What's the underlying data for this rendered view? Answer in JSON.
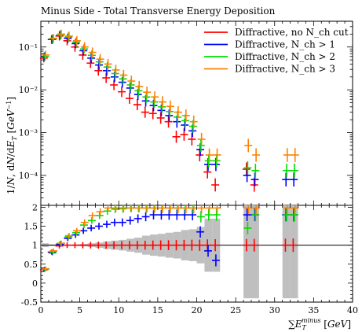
{
  "chart_data": {
    "type": "scatter",
    "title": "Minus Side - Total Transverse Energy Deposition",
    "xlabel": "∑E_T^minus [GeV]",
    "ylabel": "1/N dN/dE_T [GeV^-1]",
    "xlim": [
      0,
      40
    ],
    "top_panel": {
      "ylim_log": [
        2e-05,
        0.4
      ],
      "y_ticks": [
        {
          "value": 0.1,
          "label": "10⁻¹"
        },
        {
          "value": 0.01,
          "label": "10⁻²"
        },
        {
          "value": 0.001,
          "label": "10⁻³"
        },
        {
          "value": 0.0001,
          "label": "10⁻⁴"
        }
      ]
    },
    "ratio_panel": {
      "ylim": [
        -0.5,
        2.05
      ],
      "y_ticks": [
        "-0.5",
        "0",
        "0.5",
        "1",
        "1.5",
        "2"
      ]
    },
    "x_ticks": [
      "0",
      "5",
      "10",
      "15",
      "20",
      "25",
      "30",
      "35",
      "40"
    ],
    "legend_position": "top-right",
    "legend": [
      {
        "label": "Diffractive, no N_ch cut",
        "color": "#ff0000"
      },
      {
        "label": "Diffractive, N_ch > 1",
        "color": "#0000ff"
      },
      {
        "label": "Diffractive, N_ch > 2",
        "color": "#00dd00"
      },
      {
        "label": "Diffractive, N_ch > 3",
        "color": "#ff8000"
      }
    ],
    "bin_width": 1,
    "x": [
      0.5,
      1.5,
      2.5,
      3.5,
      4.5,
      5.5,
      6.5,
      7.5,
      8.5,
      9.5,
      10.5,
      11.5,
      12.5,
      13.5,
      14.5,
      15.5,
      16.5,
      17.5,
      18.5,
      19.5,
      20.5,
      21.5,
      22.5,
      26.5,
      27.5,
      31.5,
      32.5
    ],
    "series": [
      {
        "name": "Diffractive, no N_ch cut",
        "color": "#ff0000",
        "values": [
          0.055,
          0.15,
          0.18,
          0.14,
          0.1,
          0.065,
          0.042,
          0.028,
          0.019,
          0.013,
          0.009,
          0.0063,
          0.0045,
          0.003,
          0.0028,
          0.0022,
          0.0018,
          0.0008,
          0.0009,
          0.0007,
          0.0003,
          0.00012,
          6e-05,
          0.00014,
          6e-05,
          0.0,
          0.0
        ],
        "ratio": [
          0.35,
          0.82,
          0.98,
          1.0,
          1.0,
          1.0,
          1.0,
          1.0,
          1.0,
          1.0,
          1.0,
          1.0,
          1.0,
          1.0,
          1.0,
          1.0,
          1.0,
          1.0,
          1.0,
          1.0,
          1.0,
          1.0,
          1.0,
          1.0,
          1.0,
          1.0,
          1.0
        ]
      },
      {
        "name": "Diffractive, N_ch > 1",
        "color": "#0000ff",
        "values": [
          0.06,
          0.15,
          0.19,
          0.16,
          0.12,
          0.082,
          0.055,
          0.038,
          0.028,
          0.02,
          0.015,
          0.011,
          0.0078,
          0.0055,
          0.0043,
          0.0033,
          0.0025,
          0.0018,
          0.0015,
          0.0011,
          0.0004,
          0.00018,
          0.00018,
          0.0001,
          8e-05,
          8e-05,
          8e-05
        ],
        "ratio": [
          0.37,
          0.8,
          1.03,
          1.18,
          1.27,
          1.38,
          1.45,
          1.5,
          1.55,
          1.6,
          1.6,
          1.65,
          1.7,
          1.75,
          1.8,
          1.8,
          1.8,
          1.8,
          1.8,
          1.8,
          1.35,
          0.85,
          0.6,
          1.8,
          1.8,
          1.8,
          1.8
        ]
      },
      {
        "name": "Diffractive, N_ch > 2",
        "color": "#00dd00",
        "values": [
          0.06,
          0.155,
          0.19,
          0.17,
          0.13,
          0.09,
          0.064,
          0.045,
          0.034,
          0.024,
          0.018,
          0.013,
          0.0095,
          0.0068,
          0.0052,
          0.004,
          0.0031,
          0.0023,
          0.0019,
          0.0014,
          0.0005,
          0.00022,
          0.00022,
          0.00015,
          0.00013,
          0.00013,
          0.00013
        ],
        "ratio": [
          0.36,
          0.82,
          1.05,
          1.22,
          1.33,
          1.53,
          1.65,
          1.78,
          1.9,
          1.95,
          1.96,
          1.98,
          1.98,
          1.98,
          1.98,
          1.98,
          1.98,
          1.98,
          1.98,
          1.98,
          1.75,
          1.8,
          1.8,
          1.45,
          1.8,
          1.8,
          1.8
        ]
      },
      {
        "name": "Diffractive, N_ch > 3",
        "color": "#ff8000",
        "values": [
          0.065,
          0.16,
          0.2,
          0.18,
          0.14,
          0.1,
          0.075,
          0.052,
          0.04,
          0.029,
          0.022,
          0.016,
          0.012,
          0.0088,
          0.0068,
          0.0052,
          0.0041,
          0.003,
          0.0025,
          0.0018,
          0.0007,
          0.0003,
          0.0003,
          0.0005,
          0.0003,
          0.0003,
          0.0003
        ],
        "ratio": [
          0.38,
          0.85,
          1.05,
          1.25,
          1.38,
          1.6,
          1.78,
          1.88,
          1.98,
          1.98,
          1.98,
          1.98,
          1.98,
          1.98,
          1.98,
          1.98,
          1.98,
          1.98,
          1.98,
          1.98,
          1.98,
          1.98,
          1.98,
          1.98,
          1.98,
          1.98,
          1.98
        ]
      }
    ],
    "ratio_band": {
      "color": "#bfbfbf",
      "half_width": [
        0.05,
        0.02,
        0.01,
        0.01,
        0.02,
        0.03,
        0.05,
        0.07,
        0.1,
        0.12,
        0.14,
        0.17,
        0.2,
        0.25,
        0.28,
        0.3,
        0.33,
        0.35,
        0.4,
        0.42,
        0.48,
        0.7,
        0.7,
        1.4,
        1.4,
        1.4,
        1.4
      ]
    }
  }
}
